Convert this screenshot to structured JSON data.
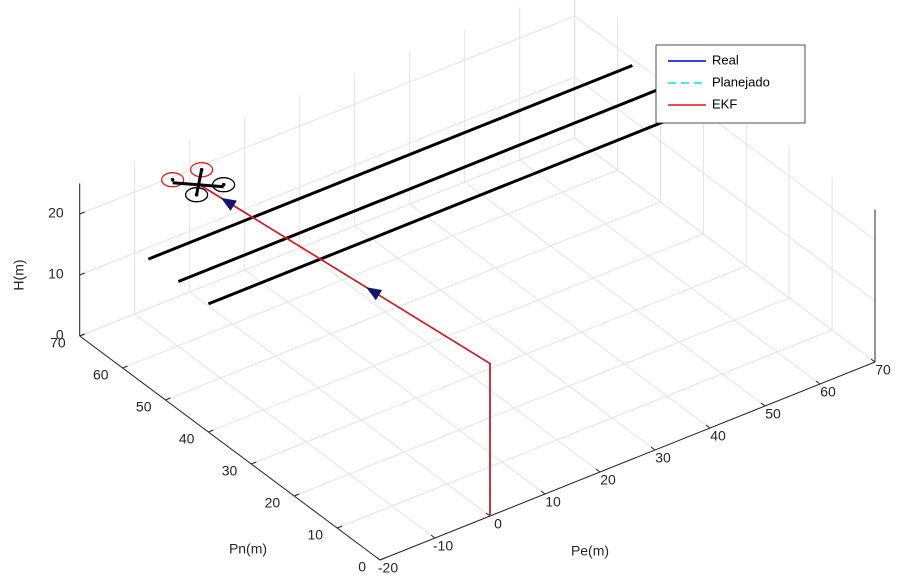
{
  "chart_data": {
    "type": "line3d",
    "xlabel": "Pe(m)",
    "ylabel": "Pn(m)",
    "zlabel": "H(m)",
    "xlim": [
      -20,
      70
    ],
    "ylim": [
      0,
      70
    ],
    "zlim": [
      0,
      25
    ],
    "xticks": [
      -20,
      -10,
      0,
      10,
      20,
      30,
      40,
      50,
      60,
      70
    ],
    "yticks": [
      0,
      10,
      20,
      30,
      40,
      50,
      60,
      70
    ],
    "zticks": [
      0,
      10,
      20
    ],
    "grid": true,
    "legend": "northeast",
    "series": [
      {
        "name": "Real",
        "color": "#0000cc",
        "dash": false,
        "x": [
          0,
          0,
          -6
        ],
        "y": [
          0,
          0,
          60
        ],
        "z": [
          0,
          25,
          25
        ]
      },
      {
        "name": "Planejado",
        "color": "#00e5ee",
        "dash": true,
        "x": [
          0,
          0,
          -6
        ],
        "y": [
          0,
          0,
          60
        ],
        "z": [
          0,
          25,
          25
        ]
      },
      {
        "name": "EKF",
        "color": "#ee1111",
        "dash": false,
        "x": [
          0,
          0,
          -6
        ],
        "y": [
          0,
          0,
          60
        ],
        "z": [
          0,
          25,
          25
        ]
      }
    ],
    "wires": [
      {
        "color": "#000000",
        "x": [
          -20,
          68
        ],
        "y": [
          54,
          54
        ],
        "z": [
          21,
          21
        ]
      },
      {
        "color": "#000000",
        "x": [
          -20,
          68
        ],
        "y": [
          47,
          47
        ],
        "z": [
          21,
          21
        ]
      },
      {
        "color": "#000000",
        "x": [
          -20,
          68
        ],
        "y": [
          40,
          40
        ],
        "z": [
          21,
          21
        ]
      }
    ]
  }
}
